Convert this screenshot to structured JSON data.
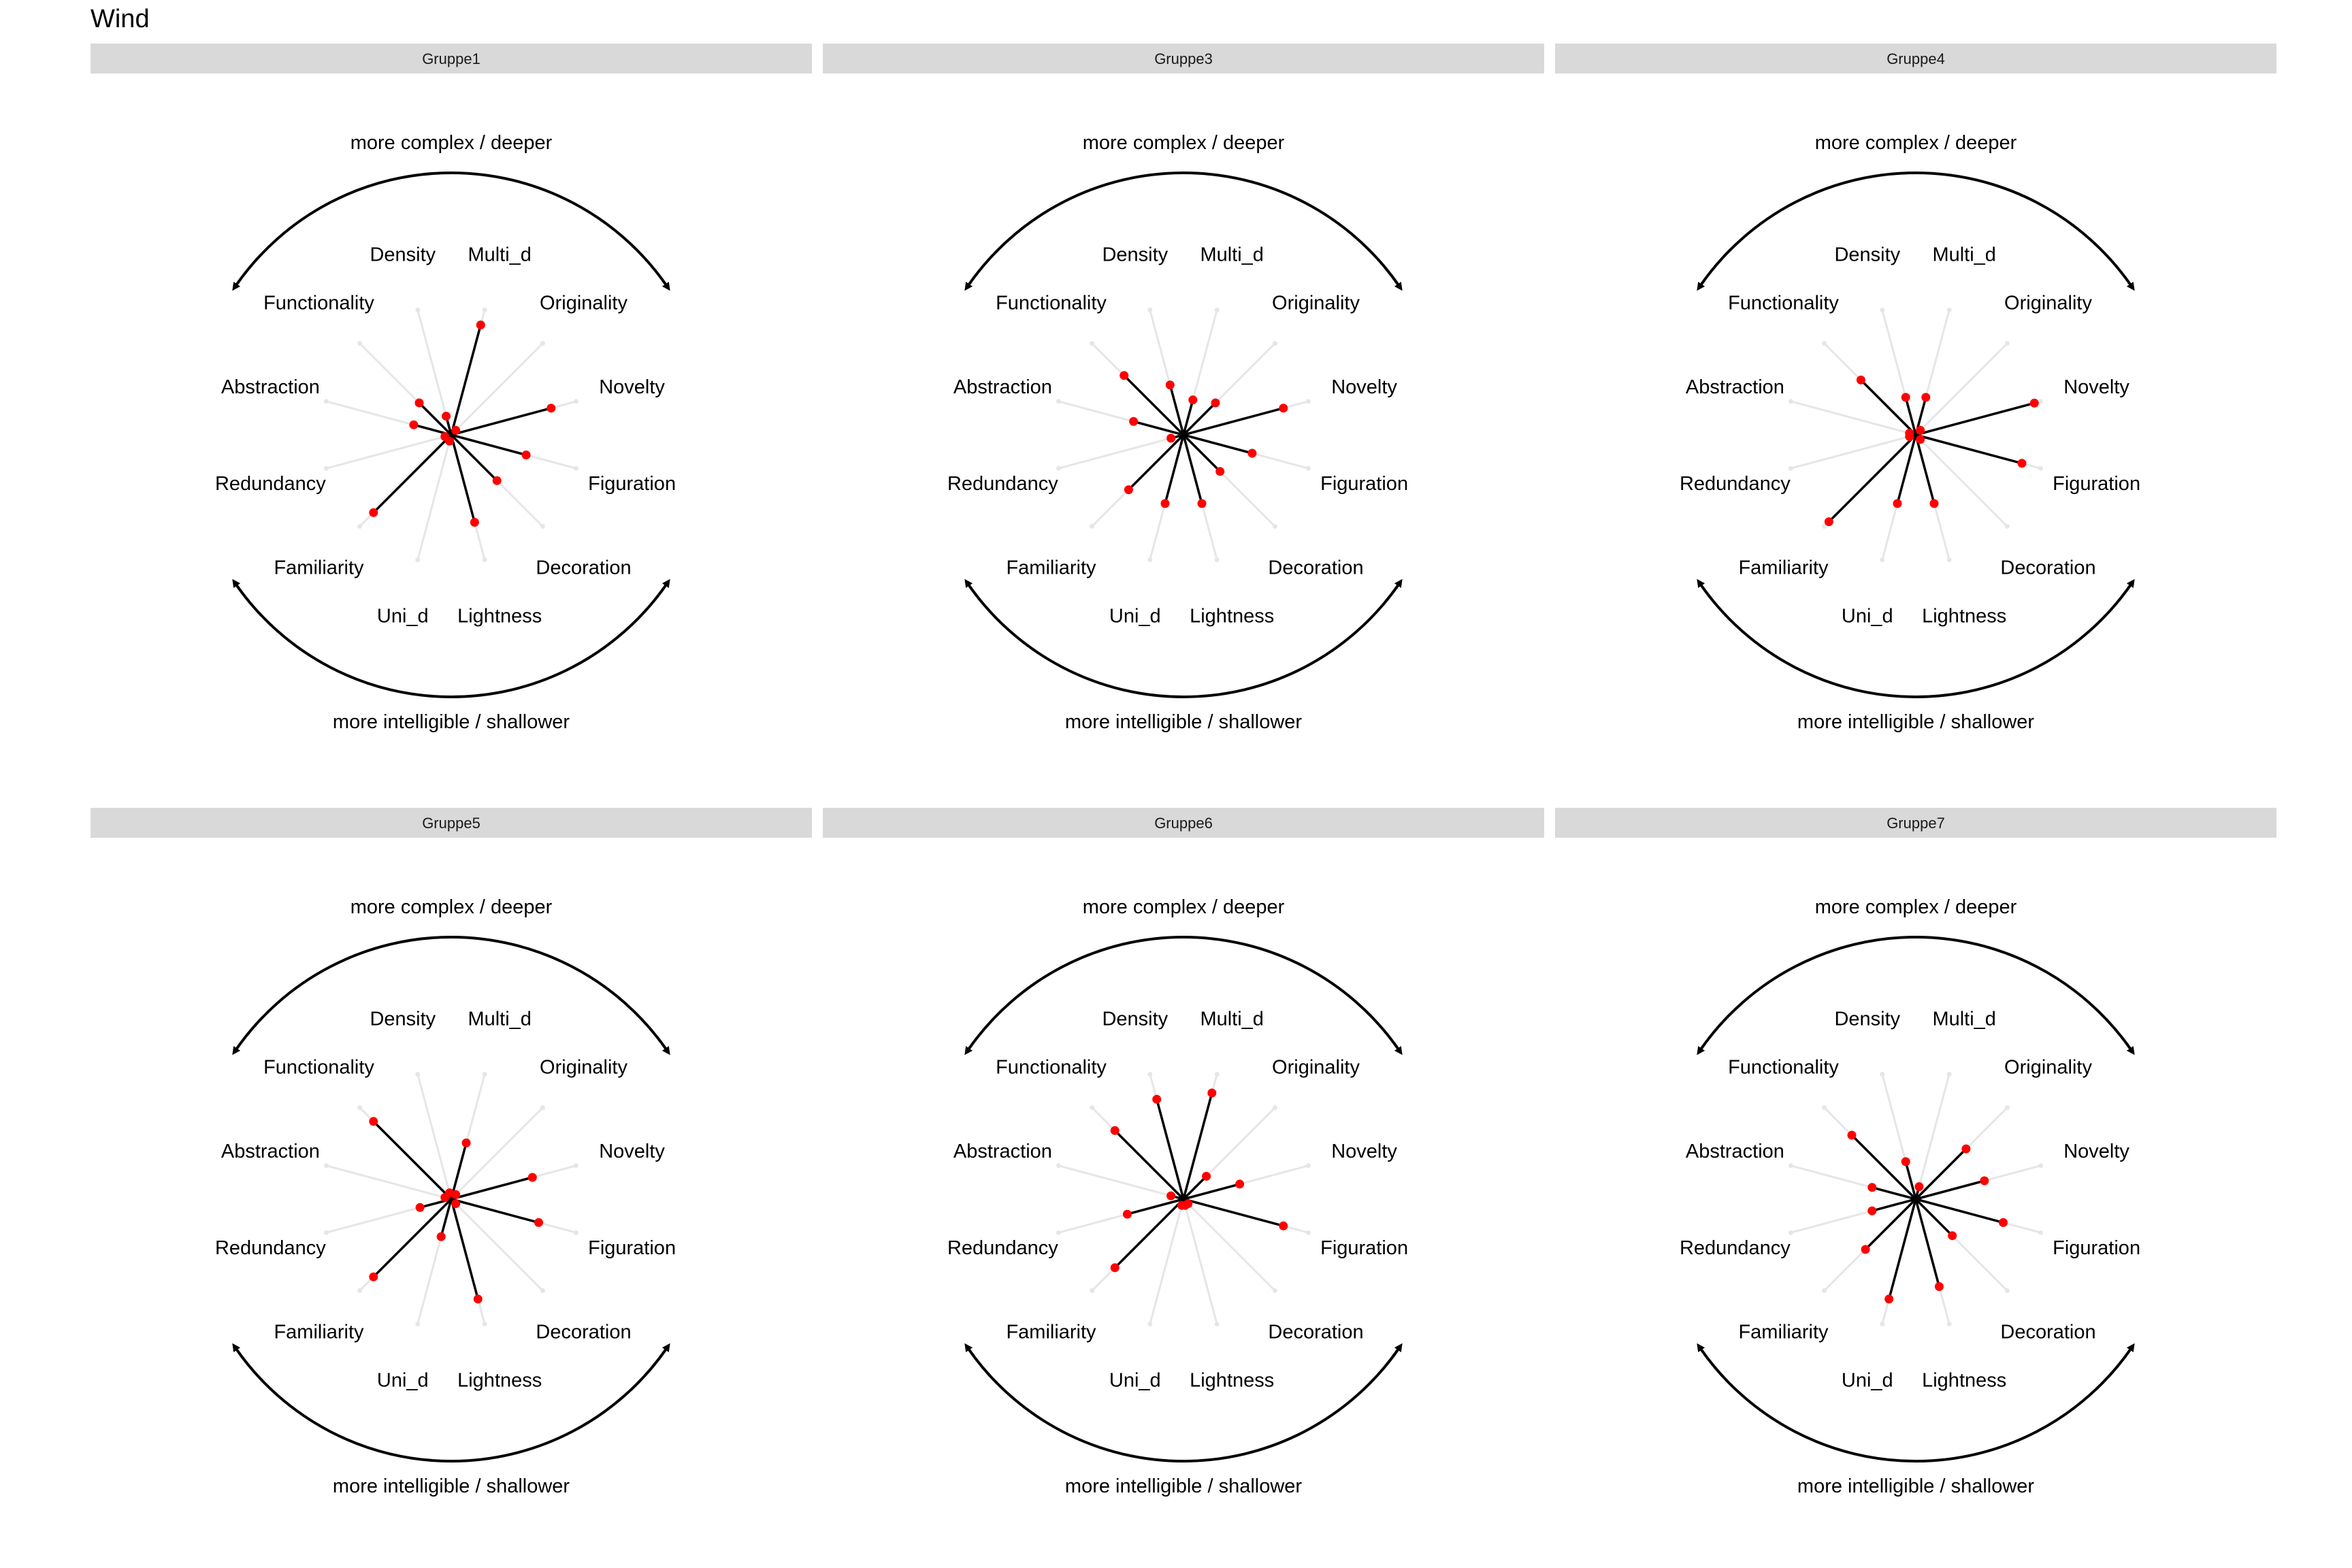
{
  "title": "Wind",
  "chart_data": {
    "type": "radar",
    "facet_labels": [
      "Gruppe1",
      "Gruppe3",
      "Gruppe4",
      "Gruppe5",
      "Gruppe6",
      "Gruppe7"
    ],
    "axes": [
      "Multi_d",
      "Originality",
      "Novelty",
      "Figuration",
      "Decoration",
      "Lightness",
      "Uni_d",
      "Familiarity",
      "Redundancy",
      "Abstraction",
      "Functionality",
      "Density"
    ],
    "value_range": [
      0,
      1
    ],
    "annotations": {
      "top": "more complex / deeper",
      "bottom": "more intelligible / shallower"
    },
    "colors": {
      "point": "#ff0000",
      "spoke": "#000000",
      "reference_spoke": "#e6e6e6",
      "strip_background": "#d9d9d9"
    },
    "facets": [
      {
        "label": "Gruppe1",
        "values": [
          0.88,
          0.05,
          0.8,
          0.6,
          0.5,
          0.7,
          0.05,
          0.85,
          0.05,
          0.3,
          0.35,
          0.15
        ]
      },
      {
        "label": "Gruppe3",
        "values": [
          0.28,
          0.35,
          0.8,
          0.55,
          0.4,
          0.55,
          0.55,
          0.6,
          0.1,
          0.4,
          0.65,
          0.4
        ]
      },
      {
        "label": "Gruppe4",
        "values": [
          0.3,
          0.05,
          0.95,
          0.85,
          0.05,
          0.55,
          0.55,
          0.95,
          0.05,
          0.05,
          0.6,
          0.3
        ]
      },
      {
        "label": "Gruppe5",
        "values": [
          0.45,
          0.05,
          0.65,
          0.7,
          0.05,
          0.8,
          0.3,
          0.85,
          0.25,
          0.05,
          0.85,
          0.05
        ]
      },
      {
        "label": "Gruppe6",
        "values": [
          0.85,
          0.25,
          0.45,
          0.8,
          0.05,
          0.05,
          0.05,
          0.75,
          0.45,
          0.1,
          0.75,
          0.8
        ]
      },
      {
        "label": "Gruppe7",
        "values": [
          0.1,
          0.55,
          0.55,
          0.7,
          0.4,
          0.7,
          0.8,
          0.55,
          0.35,
          0.35,
          0.7,
          0.3
        ]
      }
    ]
  }
}
